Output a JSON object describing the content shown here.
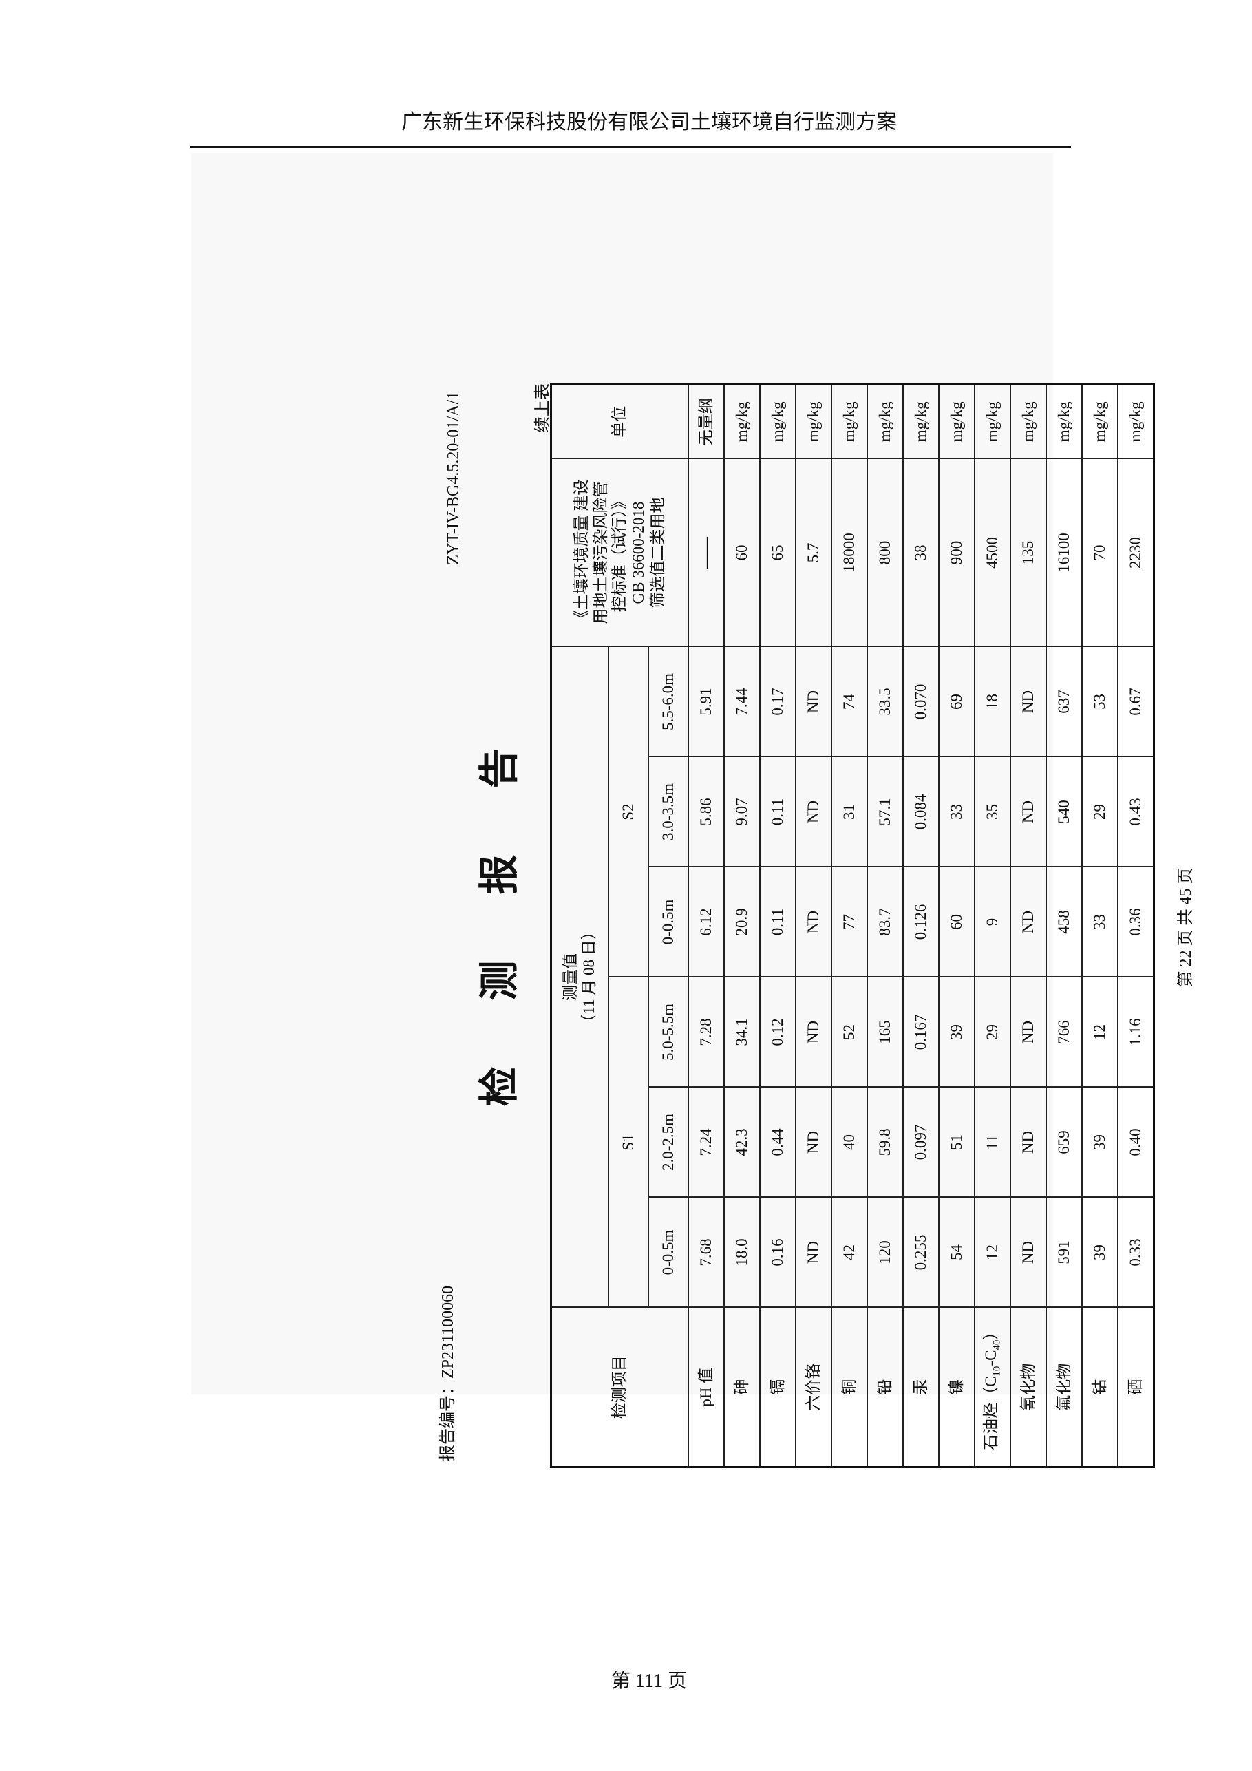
{
  "document": {
    "header": "广东新生环保科技股份有限公司土壤环境自行监测方案",
    "footer": "第 111 页"
  },
  "scan": {
    "title_chars": [
      "检",
      "测",
      "报",
      "告"
    ],
    "report_no": "报告编号：ZP231100060",
    "form_code": "ZYT-IV-BG4.5.20-01/A/1",
    "continued": "续上表",
    "page_info": "第 22 页 共 45 页",
    "table": {
      "item_header": "检测项目",
      "measured_header": "测量值",
      "measured_date": "（11 月 08 日）",
      "sites": [
        "S1",
        "S2"
      ],
      "depths": [
        "0-0.5m",
        "2.0-2.5m",
        "5.0-5.5m",
        "0-0.5m",
        "3.0-3.5m",
        "5.5-6.0m"
      ],
      "standard_header": [
        "《土壤环境质量 建设",
        "用地土壤污染风险管",
        "控标准（试行）》",
        "GB 36600-2018",
        "筛选值二类用地"
      ],
      "unit_header": "单位",
      "rows": [
        {
          "item": "pH 值",
          "values": [
            "7.68",
            "7.24",
            "7.28",
            "6.12",
            "5.86",
            "5.91"
          ],
          "standard": "——",
          "unit": "无量纲"
        },
        {
          "item": "砷",
          "values": [
            "18.0",
            "42.3",
            "34.1",
            "20.9",
            "9.07",
            "7.44"
          ],
          "standard": "60",
          "unit": "mg/kg"
        },
        {
          "item": "镉",
          "values": [
            "0.16",
            "0.44",
            "0.12",
            "0.11",
            "0.11",
            "0.17"
          ],
          "standard": "65",
          "unit": "mg/kg"
        },
        {
          "item": "六价铬",
          "values": [
            "ND",
            "ND",
            "ND",
            "ND",
            "ND",
            "ND"
          ],
          "standard": "5.7",
          "unit": "mg/kg"
        },
        {
          "item": "铜",
          "values": [
            "42",
            "40",
            "52",
            "77",
            "31",
            "74"
          ],
          "standard": "18000",
          "unit": "mg/kg"
        },
        {
          "item": "铅",
          "values": [
            "120",
            "59.8",
            "165",
            "83.7",
            "57.1",
            "33.5"
          ],
          "standard": "800",
          "unit": "mg/kg"
        },
        {
          "item": "汞",
          "values": [
            "0.255",
            "0.097",
            "0.167",
            "0.126",
            "0.084",
            "0.070"
          ],
          "standard": "38",
          "unit": "mg/kg"
        },
        {
          "item": "镍",
          "values": [
            "54",
            "51",
            "39",
            "60",
            "33",
            "69"
          ],
          "standard": "900",
          "unit": "mg/kg"
        },
        {
          "item": "石油烃（C10-C40）",
          "item_main": "石油烃（C",
          "item_sub1": "10",
          "item_mid": "-C",
          "item_sub2": "40",
          "item_end": "）",
          "values": [
            "12",
            "11",
            "29",
            "9",
            "35",
            "18"
          ],
          "standard": "4500",
          "unit": "mg/kg"
        },
        {
          "item": "氰化物",
          "values": [
            "ND",
            "ND",
            "ND",
            "ND",
            "ND",
            "ND"
          ],
          "standard": "135",
          "unit": "mg/kg"
        },
        {
          "item": "氟化物",
          "values": [
            "591",
            "659",
            "766",
            "458",
            "540",
            "637"
          ],
          "standard": "16100",
          "unit": "mg/kg"
        },
        {
          "item": "钴",
          "values": [
            "39",
            "39",
            "12",
            "33",
            "29",
            "53"
          ],
          "standard": "70",
          "unit": "mg/kg"
        },
        {
          "item": "硒",
          "values": [
            "0.33",
            "0.40",
            "1.16",
            "0.36",
            "0.43",
            "0.67"
          ],
          "standard": "2230",
          "unit": "mg/kg"
        }
      ]
    }
  }
}
